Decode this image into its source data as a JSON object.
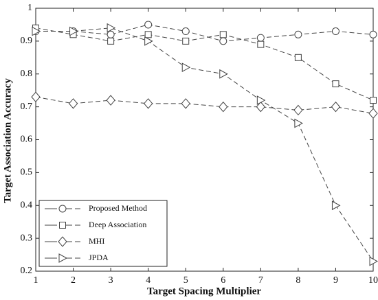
{
  "chart_data": {
    "type": "line",
    "xlabel": "Target Spacing Multiplier",
    "ylabel": "Target Association Accuracy",
    "x": [
      1,
      2,
      3,
      4,
      5,
      6,
      7,
      8,
      9,
      10
    ],
    "xlim": [
      1,
      10
    ],
    "xticks": [
      1,
      2,
      3,
      4,
      5,
      6,
      7,
      8,
      9,
      10
    ],
    "ylim": [
      0.2,
      1
    ],
    "yticks": [
      0.2,
      0.3,
      0.4,
      0.5,
      0.6,
      0.7,
      0.8,
      0.9,
      1
    ],
    "legend": "lower left",
    "series": [
      {
        "name": "Proposed Method",
        "color": "#444444",
        "marker": "circle",
        "values": [
          0.93,
          0.93,
          0.92,
          0.95,
          0.93,
          0.9,
          0.91,
          0.92,
          0.93,
          0.92
        ]
      },
      {
        "name": "Deep Association",
        "color": "#444444",
        "marker": "square",
        "values": [
          0.94,
          0.92,
          0.9,
          0.92,
          0.9,
          0.92,
          0.89,
          0.85,
          0.77,
          0.72
        ]
      },
      {
        "name": "MHI",
        "color": "#444444",
        "marker": "diamond",
        "values": [
          0.73,
          0.71,
          0.72,
          0.71,
          0.71,
          0.7,
          0.7,
          0.69,
          0.7,
          0.68
        ]
      },
      {
        "name": "JPDA",
        "color": "#444444",
        "marker": "triangle-right",
        "values": [
          0.93,
          0.93,
          0.94,
          0.9,
          0.82,
          0.8,
          0.72,
          0.65,
          0.4,
          0.23
        ]
      }
    ]
  }
}
